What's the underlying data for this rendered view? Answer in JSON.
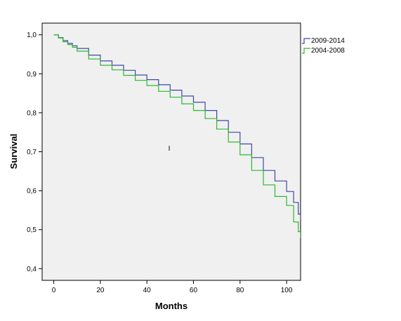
{
  "chart_data": {
    "type": "line",
    "step": true,
    "xlabel": "Months",
    "ylabel": "Survival",
    "xlim": [
      -5,
      106
    ],
    "ylim": [
      0.37,
      1.03
    ],
    "xticks": [
      0,
      20,
      40,
      60,
      80,
      100
    ],
    "xtick_labels": [
      "0",
      "20",
      "40",
      "60",
      "80",
      "100"
    ],
    "yticks": [
      0.4,
      0.5,
      0.6,
      0.7,
      0.8,
      0.9,
      1.0
    ],
    "ytick_labels": [
      "0,4",
      "0,5",
      "0,6",
      "0,7",
      "0,8",
      "0,9",
      "1,0"
    ],
    "plot_background": "#f0f0f0",
    "grid": false,
    "legend_position": "top-right, outside plot",
    "series": [
      {
        "name": "2009-2014",
        "color": "#3f48a8",
        "x": [
          0,
          2,
          4,
          6,
          8,
          10,
          15,
          20,
          25,
          30,
          35,
          40,
          45,
          50,
          55,
          60,
          65,
          70,
          75,
          80,
          85,
          90,
          95,
          100,
          103,
          105,
          106
        ],
        "y": [
          1.0,
          0.993,
          0.985,
          0.978,
          0.972,
          0.965,
          0.948,
          0.933,
          0.922,
          0.909,
          0.897,
          0.885,
          0.872,
          0.858,
          0.843,
          0.827,
          0.806,
          0.78,
          0.75,
          0.72,
          0.685,
          0.652,
          0.625,
          0.598,
          0.57,
          0.54,
          0.525
        ]
      },
      {
        "name": "2004-2008",
        "color": "#2eb82e",
        "x": [
          0,
          2,
          4,
          6,
          8,
          10,
          15,
          20,
          25,
          30,
          35,
          40,
          45,
          50,
          55,
          60,
          65,
          70,
          75,
          80,
          85,
          90,
          95,
          100,
          103,
          105,
          106
        ],
        "y": [
          1.0,
          0.992,
          0.982,
          0.975,
          0.968,
          0.958,
          0.938,
          0.922,
          0.91,
          0.896,
          0.883,
          0.87,
          0.855,
          0.84,
          0.823,
          0.806,
          0.785,
          0.758,
          0.725,
          0.692,
          0.652,
          0.615,
          0.585,
          0.562,
          0.52,
          0.495,
          0.478
        ]
      }
    ],
    "annotations": [
      "I"
    ]
  }
}
